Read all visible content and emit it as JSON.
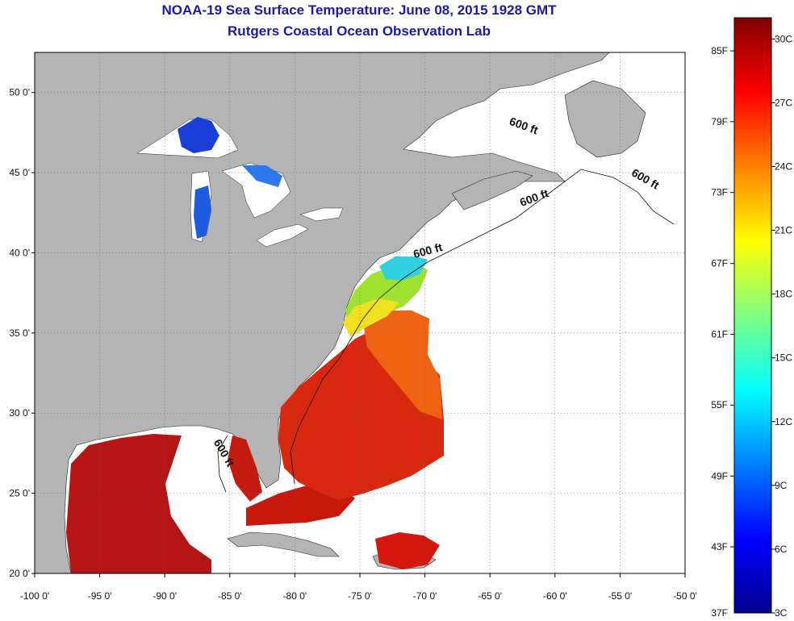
{
  "title": {
    "line1": "NOAA-19 Sea Surface Temperature:  June 08, 2015 1928 GMT",
    "line2": "Rutgers Coastal Ocean Observation Lab"
  },
  "map": {
    "lon_range": [
      -100,
      -50
    ],
    "lat_range": [
      20,
      52.5
    ],
    "x_ticks": [
      {
        "value": -100,
        "label": "-100 0'"
      },
      {
        "value": -95,
        "label": "-95 0'"
      },
      {
        "value": -90,
        "label": "-90 0'"
      },
      {
        "value": -85,
        "label": "-85 0'"
      },
      {
        "value": -80,
        "label": "-80 0'"
      },
      {
        "value": -75,
        "label": "-75 0'"
      },
      {
        "value": -70,
        "label": "-70 0'"
      },
      {
        "value": -65,
        "label": "-65 0'"
      },
      {
        "value": -60,
        "label": "-60 0'"
      },
      {
        "value": -55,
        "label": "-55 0'"
      },
      {
        "value": -50,
        "label": "-50 0'"
      }
    ],
    "y_ticks": [
      {
        "value": 20,
        "label": "20 0'"
      },
      {
        "value": 25,
        "label": "25 0'"
      },
      {
        "value": 30,
        "label": "30 0'"
      },
      {
        "value": 35,
        "label": "35 0'"
      },
      {
        "value": 40,
        "label": "40 0'"
      },
      {
        "value": 45,
        "label": "45 0'"
      },
      {
        "value": 50,
        "label": "50 0'"
      }
    ],
    "grid": "dotted",
    "land_color": "#b4b4b4",
    "no_data_color": "#ffffff",
    "contour_labels": [
      {
        "text": "600 ft",
        "lon": -62.5,
        "lat": 47.7
      },
      {
        "text": "600 ft",
        "lon": -53.2,
        "lat": 44.4
      },
      {
        "text": "600 ft",
        "lon": -61.5,
        "lat": 43.2
      },
      {
        "text": "600 ft",
        "lon": -69.7,
        "lat": 39.9
      },
      {
        "text": "600 ft",
        "lon": -85.7,
        "lat": 27.4
      }
    ]
  },
  "colorbar": {
    "c_range": [
      3,
      31
    ],
    "left_labels": [
      {
        "label": "85F",
        "c": 29.44
      },
      {
        "label": "79F",
        "c": 26.11
      },
      {
        "label": "73F",
        "c": 22.78
      },
      {
        "label": "67F",
        "c": 19.44
      },
      {
        "label": "61F",
        "c": 16.11
      },
      {
        "label": "55F",
        "c": 12.78
      },
      {
        "label": "49F",
        "c": 9.44
      },
      {
        "label": "43F",
        "c": 6.11
      },
      {
        "label": "37F",
        "c": 2.78
      }
    ],
    "right_labels": [
      {
        "label": "30C",
        "c": 30
      },
      {
        "label": "27C",
        "c": 27
      },
      {
        "label": "24C",
        "c": 24
      },
      {
        "label": "21C",
        "c": 21
      },
      {
        "label": "18C",
        "c": 18
      },
      {
        "label": "15C",
        "c": 15
      },
      {
        "label": "12C",
        "c": 12
      },
      {
        "label": "9C",
        "c": 9
      },
      {
        "label": "6C",
        "c": 6
      },
      {
        "label": "3C",
        "c": 3
      }
    ],
    "stops": [
      "#00008f",
      "#0000ff",
      "#0080ff",
      "#00ffff",
      "#80ff80",
      "#ffff00",
      "#ff8000",
      "#ff0000",
      "#800000"
    ]
  }
}
